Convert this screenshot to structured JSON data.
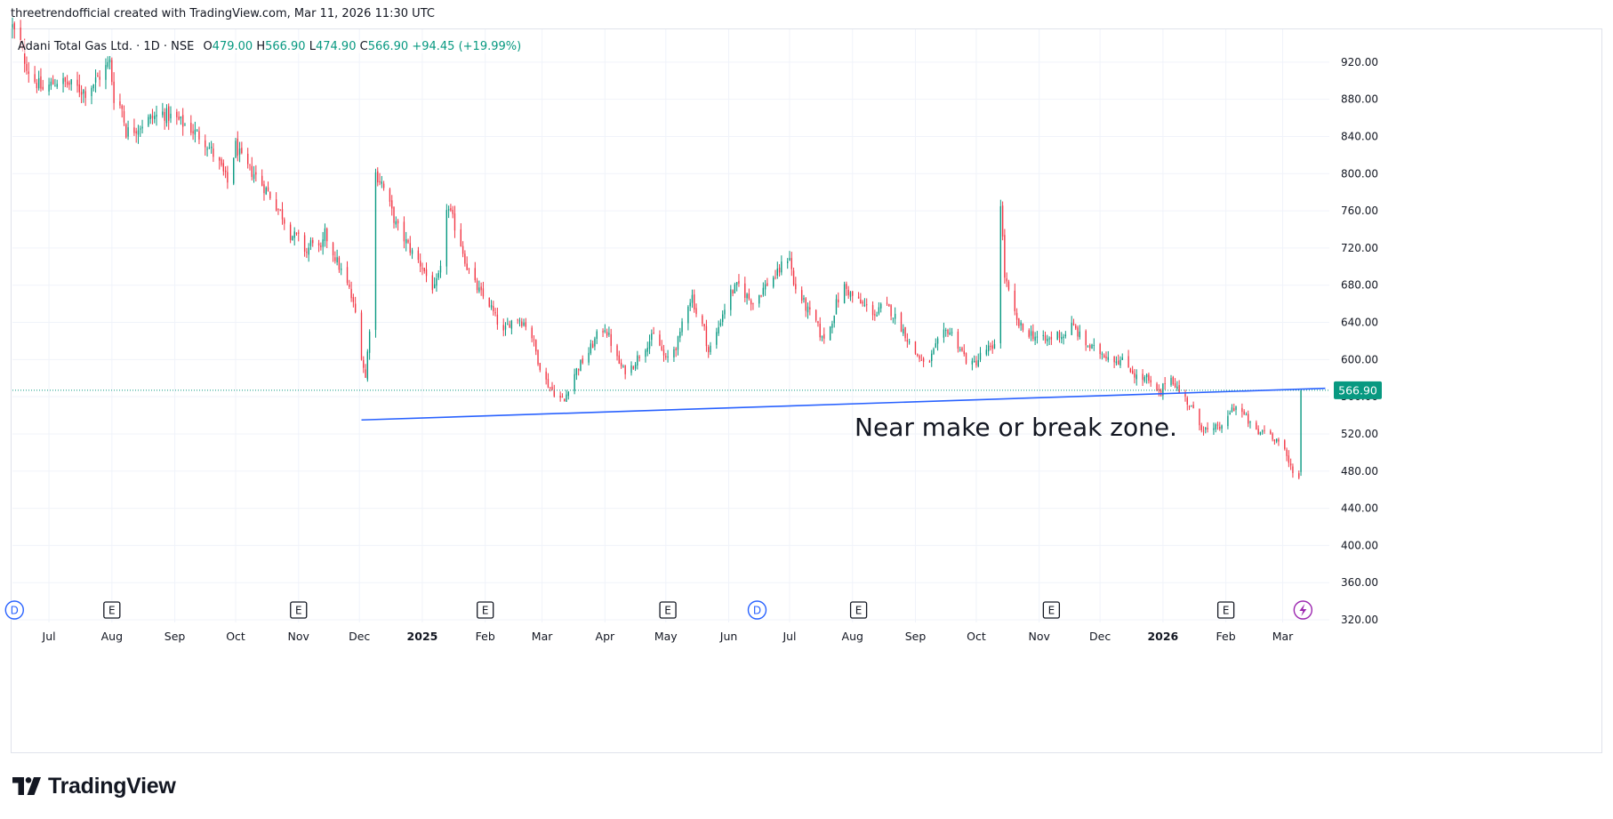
{
  "header": {
    "attribution": "threetrendofficial created with TradingView.com, Mar 11, 2026 11:30 UTC"
  },
  "legend": {
    "symbol": "Adani Total Gas Ltd. · 1D · NSE",
    "o_label": "O",
    "o_value": "479.00",
    "h_label": "H",
    "h_value": "566.90",
    "l_label": "L",
    "l_value": "474.90",
    "c_label": "C",
    "c_value": "566.90",
    "change": "+94.45 (+19.99%)"
  },
  "brand": {
    "name": "TradingView"
  },
  "colors": {
    "up": "#089981",
    "down": "#f23645",
    "trendline": "#2962ff",
    "last_price_bg": "#089981",
    "grid": "#f0f3fa",
    "event_d": "#2962ff",
    "event_e": "#131722",
    "event_bolt": "#9c27b0"
  },
  "chart_data": {
    "type": "candlestick",
    "ylim": [
      320,
      960
    ],
    "y_ticks": [
      320,
      360,
      400,
      440,
      480,
      520,
      560,
      600,
      640,
      680,
      720,
      760,
      800,
      840,
      880,
      920
    ],
    "y_tick_labels": [
      "320.00",
      "360.00",
      "400.00",
      "440.00",
      "480.00",
      "520.00",
      "560.00",
      "600.00",
      "640.00",
      "680.00",
      "720.00",
      "760.00",
      "800.00",
      "840.00",
      "880.00",
      "920.00"
    ],
    "x_start": "2024-06-13",
    "x_end": "2026-03-24",
    "x_ticks": [
      {
        "date": "2024-07-01",
        "label": "Jul",
        "bold": false
      },
      {
        "date": "2024-08-01",
        "label": "Aug",
        "bold": false
      },
      {
        "date": "2024-09-01",
        "label": "Sep",
        "bold": false
      },
      {
        "date": "2024-10-01",
        "label": "Oct",
        "bold": false
      },
      {
        "date": "2024-11-01",
        "label": "Nov",
        "bold": false
      },
      {
        "date": "2024-12-01",
        "label": "Dec",
        "bold": false
      },
      {
        "date": "2025-01-01",
        "label": "2025",
        "bold": true
      },
      {
        "date": "2025-02-01",
        "label": "Feb",
        "bold": false
      },
      {
        "date": "2025-03-01",
        "label": "Mar",
        "bold": false
      },
      {
        "date": "2025-04-01",
        "label": "Apr",
        "bold": false
      },
      {
        "date": "2025-05-01",
        "label": "May",
        "bold": false
      },
      {
        "date": "2025-06-01",
        "label": "Jun",
        "bold": false
      },
      {
        "date": "2025-07-01",
        "label": "Jul",
        "bold": false
      },
      {
        "date": "2025-08-01",
        "label": "Aug",
        "bold": false
      },
      {
        "date": "2025-09-01",
        "label": "Sep",
        "bold": false
      },
      {
        "date": "2025-10-01",
        "label": "Oct",
        "bold": false
      },
      {
        "date": "2025-11-01",
        "label": "Nov",
        "bold": false
      },
      {
        "date": "2025-12-01",
        "label": "Dec",
        "bold": false
      },
      {
        "date": "2026-01-01",
        "label": "2026",
        "bold": true
      },
      {
        "date": "2026-02-01",
        "label": "Feb",
        "bold": false
      },
      {
        "date": "2026-03-01",
        "label": "Mar",
        "bold": false
      }
    ],
    "price_path": [
      [
        "2024-06-13",
        958
      ],
      [
        "2024-06-17",
        935
      ],
      [
        "2024-06-22",
        905
      ],
      [
        "2024-06-28",
        890
      ],
      [
        "2024-07-05",
        900
      ],
      [
        "2024-07-12",
        895
      ],
      [
        "2024-07-19",
        888
      ],
      [
        "2024-07-26",
        905
      ],
      [
        "2024-07-31",
        920
      ],
      [
        "2024-08-02",
        882
      ],
      [
        "2024-08-06",
        870
      ],
      [
        "2024-08-08",
        845
      ],
      [
        "2024-08-12",
        848
      ],
      [
        "2024-08-19",
        858
      ],
      [
        "2024-08-26",
        865
      ],
      [
        "2024-09-02",
        858
      ],
      [
        "2024-09-09",
        848
      ],
      [
        "2024-09-16",
        835
      ],
      [
        "2024-09-23",
        810
      ],
      [
        "2024-09-27",
        790
      ],
      [
        "2024-10-01",
        830
      ],
      [
        "2024-10-05",
        810
      ],
      [
        "2024-10-10",
        800
      ],
      [
        "2024-10-17",
        780
      ],
      [
        "2024-10-24",
        755
      ],
      [
        "2024-10-28",
        735
      ],
      [
        "2024-11-01",
        730
      ],
      [
        "2024-11-05",
        715
      ],
      [
        "2024-11-08",
        730
      ],
      [
        "2024-11-12",
        715
      ],
      [
        "2024-11-14",
        735
      ],
      [
        "2024-11-18",
        715
      ],
      [
        "2024-11-22",
        695
      ],
      [
        "2024-11-26",
        675
      ],
      [
        "2024-11-29",
        650
      ],
      [
        "2024-12-02",
        605
      ],
      [
        "2024-12-04",
        580
      ],
      [
        "2024-12-06",
        635
      ],
      [
        "2024-12-09",
        800
      ],
      [
        "2024-12-12",
        790
      ],
      [
        "2024-12-16",
        765
      ],
      [
        "2024-12-19",
        745
      ],
      [
        "2024-12-23",
        730
      ],
      [
        "2024-12-27",
        715
      ],
      [
        "2025-01-01",
        700
      ],
      [
        "2025-01-03",
        690
      ],
      [
        "2025-01-07",
        675
      ],
      [
        "2025-01-10",
        695
      ],
      [
        "2025-01-13",
        765
      ],
      [
        "2025-01-16",
        750
      ],
      [
        "2025-01-20",
        725
      ],
      [
        "2025-01-23",
        700
      ],
      [
        "2025-01-27",
        680
      ],
      [
        "2025-01-30",
        670
      ],
      [
        "2025-02-03",
        660
      ],
      [
        "2025-02-06",
        645
      ],
      [
        "2025-02-10",
        628
      ],
      [
        "2025-02-13",
        640
      ],
      [
        "2025-02-17",
        645
      ],
      [
        "2025-02-21",
        638
      ],
      [
        "2025-02-24",
        625
      ],
      [
        "2025-02-27",
        600
      ],
      [
        "2025-03-02",
        580
      ],
      [
        "2025-03-05",
        570
      ],
      [
        "2025-03-09",
        560
      ],
      [
        "2025-03-12",
        555
      ],
      [
        "2025-03-15",
        578
      ],
      [
        "2025-03-19",
        592
      ],
      [
        "2025-03-24",
        608
      ],
      [
        "2025-03-28",
        625
      ],
      [
        "2025-04-01",
        635
      ],
      [
        "2025-04-04",
        618
      ],
      [
        "2025-04-07",
        600
      ],
      [
        "2025-04-10",
        588
      ],
      [
        "2025-04-14",
        592
      ],
      [
        "2025-04-18",
        605
      ],
      [
        "2025-04-22",
        618
      ],
      [
        "2025-04-25",
        625
      ],
      [
        "2025-04-28",
        615
      ],
      [
        "2025-05-01",
        598
      ],
      [
        "2025-05-03",
        606
      ],
      [
        "2025-05-06",
        615
      ],
      [
        "2025-05-08",
        625
      ],
      [
        "2025-05-10",
        655
      ],
      [
        "2025-05-14",
        668
      ],
      [
        "2025-05-16",
        650
      ],
      [
        "2025-05-20",
        632
      ],
      [
        "2025-05-22",
        608
      ],
      [
        "2025-05-26",
        628
      ],
      [
        "2025-05-29",
        650
      ],
      [
        "2025-06-02",
        672
      ],
      [
        "2025-06-06",
        680
      ],
      [
        "2025-06-10",
        668
      ],
      [
        "2025-06-13",
        662
      ],
      [
        "2025-06-17",
        673
      ],
      [
        "2025-06-21",
        685
      ],
      [
        "2025-06-25",
        692
      ],
      [
        "2025-06-28",
        705
      ],
      [
        "2025-07-01",
        712
      ],
      [
        "2025-07-03",
        680
      ],
      [
        "2025-07-07",
        665
      ],
      [
        "2025-07-10",
        652
      ],
      [
        "2025-07-14",
        640
      ],
      [
        "2025-07-17",
        622
      ],
      [
        "2025-07-21",
        635
      ],
      [
        "2025-07-24",
        660
      ],
      [
        "2025-07-28",
        678
      ],
      [
        "2025-08-01",
        668
      ],
      [
        "2025-08-05",
        660
      ],
      [
        "2025-08-09",
        655
      ],
      [
        "2025-08-13",
        648
      ],
      [
        "2025-08-16",
        660
      ],
      [
        "2025-08-20",
        652
      ],
      [
        "2025-08-23",
        642
      ],
      [
        "2025-08-27",
        628
      ],
      [
        "2025-08-30",
        612
      ],
      [
        "2025-09-03",
        602
      ],
      [
        "2025-09-06",
        590
      ],
      [
        "2025-09-10",
        608
      ],
      [
        "2025-09-13",
        622
      ],
      [
        "2025-09-17",
        632
      ],
      [
        "2025-09-20",
        625
      ],
      [
        "2025-09-23",
        612
      ],
      [
        "2025-09-26",
        600
      ],
      [
        "2025-09-29",
        594
      ],
      [
        "2025-10-02",
        600
      ],
      [
        "2025-10-04",
        608
      ],
      [
        "2025-10-07",
        612
      ],
      [
        "2025-10-09",
        608
      ],
      [
        "2025-10-11",
        628
      ],
      [
        "2025-10-13",
        770
      ],
      [
        "2025-10-15",
        690
      ],
      [
        "2025-10-18",
        662
      ],
      [
        "2025-10-21",
        640
      ],
      [
        "2025-10-24",
        632
      ],
      [
        "2025-10-28",
        628
      ],
      [
        "2025-11-01",
        622
      ],
      [
        "2025-11-04",
        620
      ],
      [
        "2025-11-07",
        623
      ],
      [
        "2025-11-10",
        628
      ],
      [
        "2025-11-13",
        625
      ],
      [
        "2025-11-16",
        638
      ],
      [
        "2025-11-19",
        632
      ],
      [
        "2025-11-23",
        618
      ],
      [
        "2025-11-27",
        612
      ],
      [
        "2025-12-01",
        608
      ],
      [
        "2025-12-05",
        604
      ],
      [
        "2025-12-09",
        600
      ],
      [
        "2025-12-12",
        598
      ],
      [
        "2025-12-16",
        590
      ],
      [
        "2025-12-20",
        578
      ],
      [
        "2025-12-24",
        580
      ],
      [
        "2025-12-27",
        568
      ],
      [
        "2025-12-31",
        562
      ],
      [
        "2026-01-03",
        585
      ],
      [
        "2026-01-06",
        578
      ],
      [
        "2026-01-09",
        565
      ],
      [
        "2026-01-12",
        558
      ],
      [
        "2026-01-15",
        548
      ],
      [
        "2026-01-19",
        530
      ],
      [
        "2026-01-22",
        525
      ],
      [
        "2026-01-25",
        518
      ],
      [
        "2026-01-28",
        530
      ],
      [
        "2026-01-31",
        522
      ],
      [
        "2026-02-03",
        545
      ],
      [
        "2026-02-06",
        550
      ],
      [
        "2026-02-10",
        540
      ],
      [
        "2026-02-13",
        530
      ],
      [
        "2026-02-17",
        520
      ],
      [
        "2026-02-20",
        525
      ],
      [
        "2026-02-24",
        518
      ],
      [
        "2026-02-27",
        512
      ],
      [
        "2026-03-02",
        500
      ],
      [
        "2026-03-04",
        488
      ],
      [
        "2026-03-06",
        482
      ],
      [
        "2026-03-09",
        472
      ],
      [
        "2026-03-10",
        479
      ]
    ],
    "last_candle": {
      "date": "2026-03-10",
      "open": 479.0,
      "high": 566.9,
      "low": 474.9,
      "close": 566.9
    },
    "trendline": [
      [
        "2024-12-02",
        535
      ],
      [
        "2026-03-22",
        569
      ]
    ],
    "last_price_line": 566.9,
    "last_price_label": "566.90",
    "annotation": {
      "text": "Near make or break zone.",
      "date": "2025-08-02",
      "price": 518
    },
    "events": [
      {
        "date": "2024-06-14",
        "type": "D",
        "label": "D"
      },
      {
        "date": "2024-08-01",
        "type": "E",
        "label": "E"
      },
      {
        "date": "2024-11-01",
        "type": "E",
        "label": "E"
      },
      {
        "date": "2025-02-01",
        "type": "E",
        "label": "E"
      },
      {
        "date": "2025-05-02",
        "type": "E",
        "label": "E"
      },
      {
        "date": "2025-06-15",
        "type": "D",
        "label": "D"
      },
      {
        "date": "2025-08-04",
        "type": "E",
        "label": "E"
      },
      {
        "date": "2025-11-07",
        "type": "E",
        "label": "E"
      },
      {
        "date": "2026-02-01",
        "type": "E",
        "label": "E"
      },
      {
        "date": "2026-03-11",
        "type": "bolt",
        "label": "⚡"
      }
    ]
  }
}
